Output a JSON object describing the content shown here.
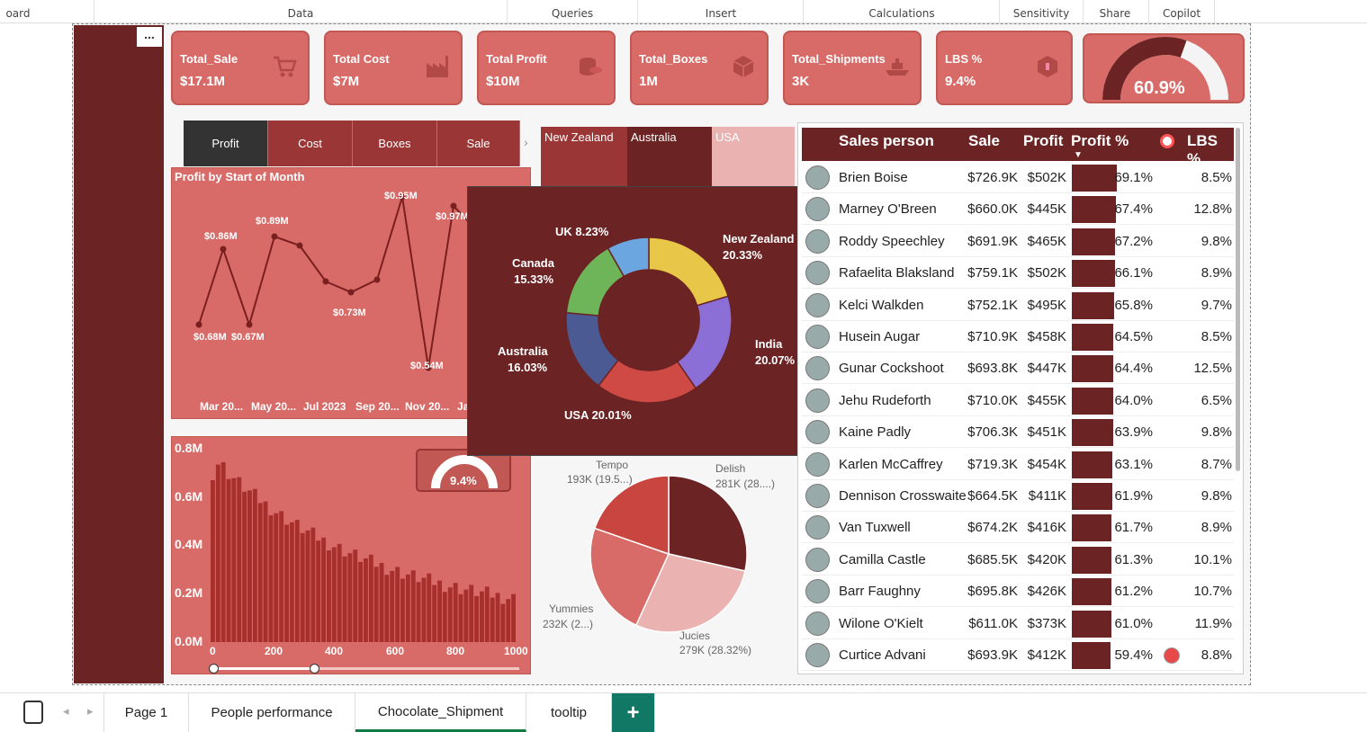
{
  "ribbon": {
    "items": [
      "oard",
      "Data",
      "Queries",
      "Insert",
      "Calculations",
      "Sensitivity",
      "Share",
      "Copilot"
    ]
  },
  "kpis": [
    {
      "title": "Total_Sale",
      "value": "$17.1M",
      "icon": "cart-icon"
    },
    {
      "title": "Total Cost",
      "value": "$7M",
      "icon": "factory-icon"
    },
    {
      "title": "Total Profit",
      "value": "$10M",
      "icon": "coins-icon"
    },
    {
      "title": "Total_Boxes",
      "value": "1M",
      "icon": "box-icon"
    },
    {
      "title": "Total_Shipments",
      "value": "3K",
      "icon": "ship-icon"
    },
    {
      "title": "LBS %",
      "value": "9.4%",
      "icon": "package-icon"
    }
  ],
  "gauge_top": {
    "value": "60.9%",
    "fraction": 0.609
  },
  "buttons": [
    "Profit",
    "Cost",
    "Boxes",
    "Sale"
  ],
  "country_tiles": [
    "New Zealand",
    "Australia",
    "USA"
  ],
  "line_chart": {
    "title": "Profit by Start of Month",
    "x_labels": [
      "Mar 20...",
      "May 20...",
      "Jul 2023",
      "Sep 20...",
      "Nov 20...",
      "Ja"
    ],
    "labels": [
      "$0.68M",
      "$0.86M",
      "$0.67M",
      "$0.89M",
      "$0.73M",
      "$0.95M",
      "$0.54M",
      "$0.97M"
    ]
  },
  "donut": {
    "segments": [
      {
        "name": "New Zealand",
        "pct": "20.33%",
        "color": "#e8c648"
      },
      {
        "name": "India",
        "pct": "20.07%",
        "color": "#8b6fd6"
      },
      {
        "name": "USA",
        "pct": "20.01%",
        "color": "#cf4a45"
      },
      {
        "name": "Australia",
        "pct": "16.03%",
        "color": "#4b5a93"
      },
      {
        "name": "Canada",
        "pct": "15.33%",
        "color": "#6eb55a"
      },
      {
        "name": "UK",
        "pct": "8.23%",
        "color": "#6ba6e0"
      }
    ],
    "labels": {
      "nz": "New Zealand",
      "nz_pct": "20.33%",
      "india": "India",
      "india_pct": "20.07%",
      "usa": "USA 20.01%",
      "aus": "Australia",
      "aus_pct": "16.03%",
      "can": "Canada",
      "can_pct": "15.33%",
      "uk": "UK 8.23%"
    }
  },
  "histogram": {
    "y_labels": [
      "0.8M",
      "0.6M",
      "0.4M",
      "0.2M",
      "0.0M"
    ],
    "x_labels": [
      "0",
      "200",
      "400",
      "600",
      "800",
      "1000"
    ],
    "gauge_value": "9.4%"
  },
  "pie": {
    "slices": [
      {
        "name": "Delish",
        "label": "281K (28....)",
        "color": "#6b2323"
      },
      {
        "name": "Jucies",
        "label": "279K (28.32%)",
        "color": "#eab2b0"
      },
      {
        "name": "Yummies",
        "label": "232K (2...)",
        "color": "#d86b68"
      },
      {
        "name": "Tempo",
        "label": "193K (19.5...)",
        "color": "#c9453f"
      }
    ]
  },
  "table": {
    "headers": {
      "name": "Sales person",
      "sale": "Sale",
      "profit": "Profit",
      "profit_pct": "Profit %",
      "lbs": "LBS %"
    },
    "rows": [
      {
        "name": "Brien Boise",
        "sale": "$726.9K",
        "profit": "$502K",
        "pct": "69.1%",
        "lbs": "8.5%",
        "frac": 0.691
      },
      {
        "name": "Marney O'Breen",
        "sale": "$660.0K",
        "profit": "$445K",
        "pct": "67.4%",
        "lbs": "12.8%",
        "frac": 0.674
      },
      {
        "name": "Roddy Speechley",
        "sale": "$691.9K",
        "profit": "$465K",
        "pct": "67.2%",
        "lbs": "9.8%",
        "frac": 0.672
      },
      {
        "name": "Rafaelita Blaksland",
        "sale": "$759.1K",
        "profit": "$502K",
        "pct": "66.1%",
        "lbs": "8.9%",
        "frac": 0.661
      },
      {
        "name": "Kelci Walkden",
        "sale": "$752.1K",
        "profit": "$495K",
        "pct": "65.8%",
        "lbs": "9.7%",
        "frac": 0.658
      },
      {
        "name": "Husein Augar",
        "sale": "$710.9K",
        "profit": "$458K",
        "pct": "64.5%",
        "lbs": "8.5%",
        "frac": 0.645
      },
      {
        "name": "Gunar Cockshoot",
        "sale": "$693.8K",
        "profit": "$447K",
        "pct": "64.4%",
        "lbs": "12.5%",
        "frac": 0.644
      },
      {
        "name": "Jehu Rudeforth",
        "sale": "$710.0K",
        "profit": "$455K",
        "pct": "64.0%",
        "lbs": "6.5%",
        "frac": 0.64
      },
      {
        "name": "Kaine Padly",
        "sale": "$706.3K",
        "profit": "$451K",
        "pct": "63.9%",
        "lbs": "9.8%",
        "frac": 0.639
      },
      {
        "name": "Karlen McCaffrey",
        "sale": "$719.3K",
        "profit": "$454K",
        "pct": "63.1%",
        "lbs": "8.7%",
        "frac": 0.631
      },
      {
        "name": "Dennison Crosswaite",
        "sale": "$664.5K",
        "profit": "$411K",
        "pct": "61.9%",
        "lbs": "9.8%",
        "frac": 0.619
      },
      {
        "name": "Van Tuxwell",
        "sale": "$674.2K",
        "profit": "$416K",
        "pct": "61.7%",
        "lbs": "8.9%",
        "frac": 0.617
      },
      {
        "name": "Camilla Castle",
        "sale": "$685.5K",
        "profit": "$420K",
        "pct": "61.3%",
        "lbs": "10.1%",
        "frac": 0.613
      },
      {
        "name": "Barr Faughny",
        "sale": "$695.8K",
        "profit": "$426K",
        "pct": "61.2%",
        "lbs": "10.7%",
        "frac": 0.612
      },
      {
        "name": "Wilone O'Kielt",
        "sale": "$611.0K",
        "profit": "$373K",
        "pct": "61.0%",
        "lbs": "11.9%",
        "frac": 0.61
      },
      {
        "name": "Curtice Advani",
        "sale": "$693.9K",
        "profit": "$412K",
        "pct": "59.4%",
        "lbs": "8.8%",
        "frac": 0.594
      }
    ]
  },
  "page_tabs": [
    "Page 1",
    "People performance",
    "Chocolate_Shipment",
    "tooltip"
  ],
  "add_tab": "+",
  "more": "..."
}
